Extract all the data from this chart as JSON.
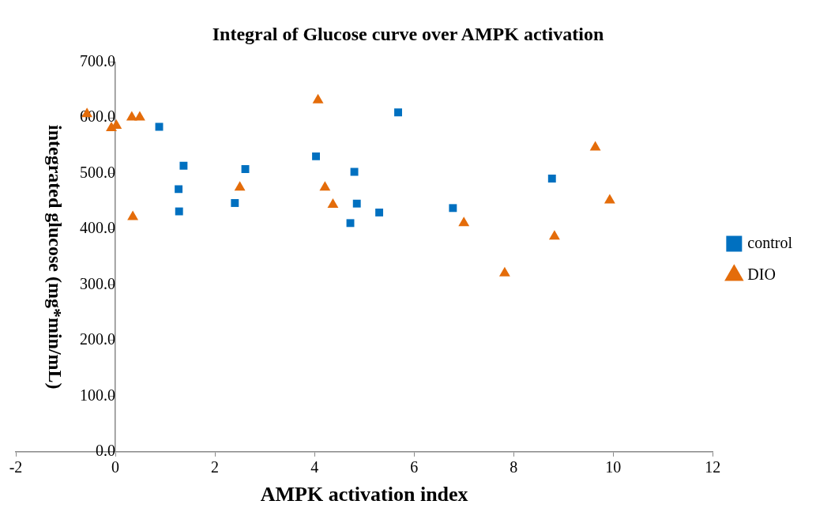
{
  "chart_data": {
    "type": "scatter",
    "title": "Integral of Glucose curve over AMPK activation",
    "xlabel": "AMPK activation index",
    "ylabel": "integrated glucose (mg*min/mL)",
    "series": [
      {
        "name": "control",
        "color": "#0070c0",
        "marker": "square",
        "x": [
          0.88,
          1.37,
          1.27,
          1.28,
          2.4,
          2.61,
          4.03,
          4.8,
          4.85,
          4.72,
          5.3,
          5.68,
          6.78,
          8.77
        ],
        "values": [
          584,
          514,
          472,
          432,
          447,
          508,
          531,
          503,
          446,
          411,
          430,
          610,
          438,
          491
        ]
      },
      {
        "name": "DIO",
        "color": "#e46c0a",
        "marker": "triangle",
        "x": [
          -0.57,
          -0.08,
          0.02,
          0.33,
          0.49,
          0.35,
          2.5,
          4.07,
          4.21,
          4.37,
          7.0,
          7.82,
          8.82,
          9.64,
          9.93
        ],
        "values": [
          607,
          582,
          586,
          601,
          601,
          422,
          475,
          632,
          475,
          444,
          411,
          321,
          387,
          547,
          452
        ]
      }
    ],
    "xlim": [
      -2,
      12
    ],
    "xticks": [
      -2,
      0,
      2,
      4,
      6,
      8,
      10,
      12
    ],
    "ylim": [
      0,
      700
    ],
    "yticks": [
      {
        "value": 0,
        "label": "0.0"
      },
      {
        "value": 100,
        "label": "100.0"
      },
      {
        "value": 200,
        "label": "200.0"
      },
      {
        "value": 300,
        "label": "300.0"
      },
      {
        "value": 400,
        "label": "400.0"
      },
      {
        "value": 500,
        "label": "500.0"
      },
      {
        "value": 600,
        "label": "600.0"
      },
      {
        "value": 700,
        "label": "700.0"
      }
    ],
    "grid": false,
    "legend": "right"
  }
}
